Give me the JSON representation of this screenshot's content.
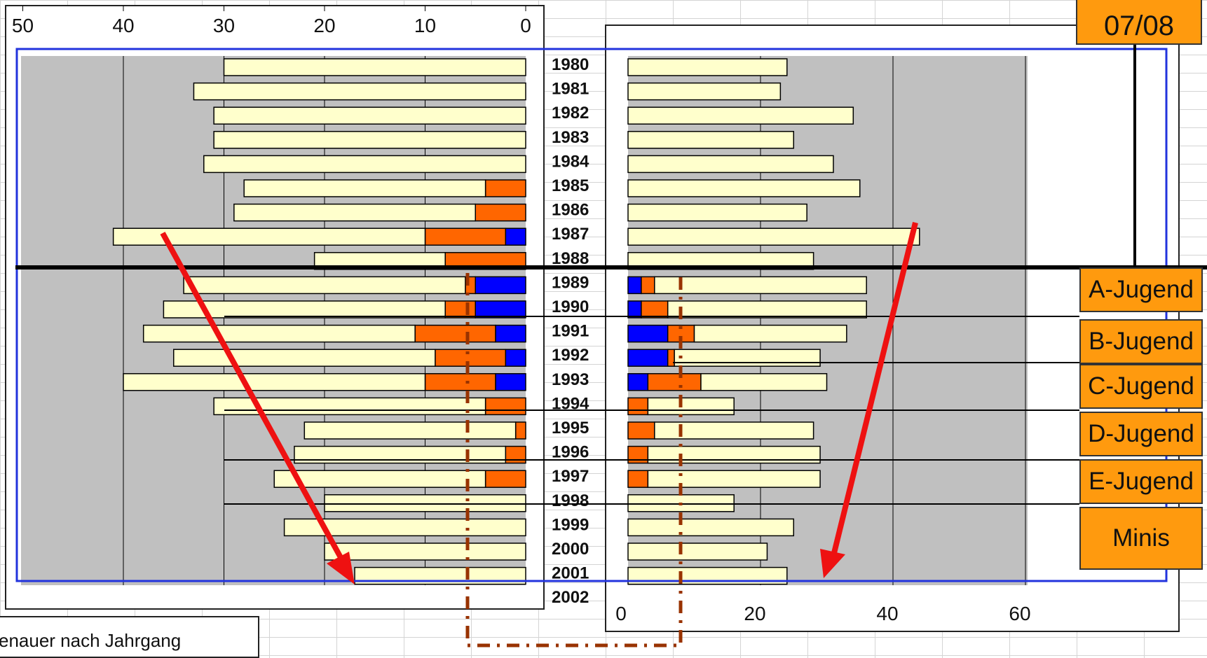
{
  "colors": {
    "cream": "#ffffcc",
    "orange": "#ff6600",
    "blue": "#0000ff",
    "plot_gray": "#c0c0c0",
    "arrow": "#ee1111",
    "dashdot": "#993300",
    "tag_orange": "#ff9a0e",
    "frame_blue": "#2233dd"
  },
  "season_label": "07/08",
  "note_text": "enauer nach Jahrgang",
  "buttons": [
    "A-Jugend",
    "B-Jugend",
    "C-Jugend",
    "D-Jugend",
    "E-Jugend",
    "Minis"
  ],
  "chart_data": [
    {
      "type": "bar",
      "orientation": "horizontal",
      "direction": "right-to-left",
      "categories": [
        "1980",
        "1981",
        "1982",
        "1983",
        "1984",
        "1985",
        "1986",
        "1987",
        "1988",
        "1989",
        "1990",
        "1991",
        "1992",
        "1993",
        "1994",
        "1995",
        "1996",
        "1997",
        "1998",
        "1999",
        "2000",
        "2001",
        "2002"
      ],
      "stacked": true,
      "series": [
        {
          "color": "blue",
          "values": [
            0,
            0,
            0,
            0,
            0,
            0,
            0,
            2,
            0,
            5,
            5,
            3,
            2,
            3,
            0,
            0,
            0,
            0,
            0,
            0,
            0,
            0,
            0
          ]
        },
        {
          "color": "orange",
          "values": [
            0,
            0,
            0,
            0,
            0,
            4,
            5,
            8,
            8,
            1,
            3,
            8,
            7,
            7,
            4,
            1,
            2,
            4,
            0,
            0,
            0,
            0,
            0
          ]
        },
        {
          "color": "cream",
          "values": [
            30,
            33,
            31,
            31,
            32,
            24,
            24,
            31,
            13,
            28,
            28,
            27,
            26,
            30,
            27,
            21,
            21,
            21,
            20,
            24,
            20,
            17,
            0
          ]
        }
      ],
      "xticks": [
        "50",
        "40",
        "30",
        "20",
        "10",
        "0"
      ],
      "xlim": [
        0,
        50
      ]
    },
    {
      "type": "bar",
      "orientation": "horizontal",
      "direction": "left-to-right",
      "categories": [
        "1980",
        "1981",
        "1982",
        "1983",
        "1984",
        "1985",
        "1986",
        "1987",
        "1988",
        "1989",
        "1990",
        "1991",
        "1992",
        "1993",
        "1994",
        "1995",
        "1996",
        "1997",
        "1998",
        "1999",
        "2000",
        "2001",
        "2002"
      ],
      "stacked": true,
      "series": [
        {
          "color": "blue",
          "values": [
            0,
            0,
            0,
            0,
            0,
            0,
            0,
            0,
            0,
            2,
            2,
            6,
            6,
            3,
            0,
            0,
            0,
            0,
            0,
            0,
            0,
            0,
            0
          ]
        },
        {
          "color": "orange",
          "values": [
            0,
            0,
            0,
            0,
            0,
            0,
            0,
            0,
            0,
            2,
            4,
            4,
            1,
            8,
            3,
            4,
            3,
            3,
            0,
            0,
            0,
            0,
            0
          ]
        },
        {
          "color": "cream",
          "values": [
            24,
            23,
            34,
            25,
            31,
            35,
            27,
            44,
            28,
            32,
            30,
            23,
            22,
            19,
            13,
            24,
            26,
            26,
            16,
            25,
            21,
            24,
            0
          ]
        }
      ],
      "xticks": [
        "0",
        "20",
        "40",
        "60"
      ],
      "xlim": [
        0,
        60
      ]
    }
  ]
}
